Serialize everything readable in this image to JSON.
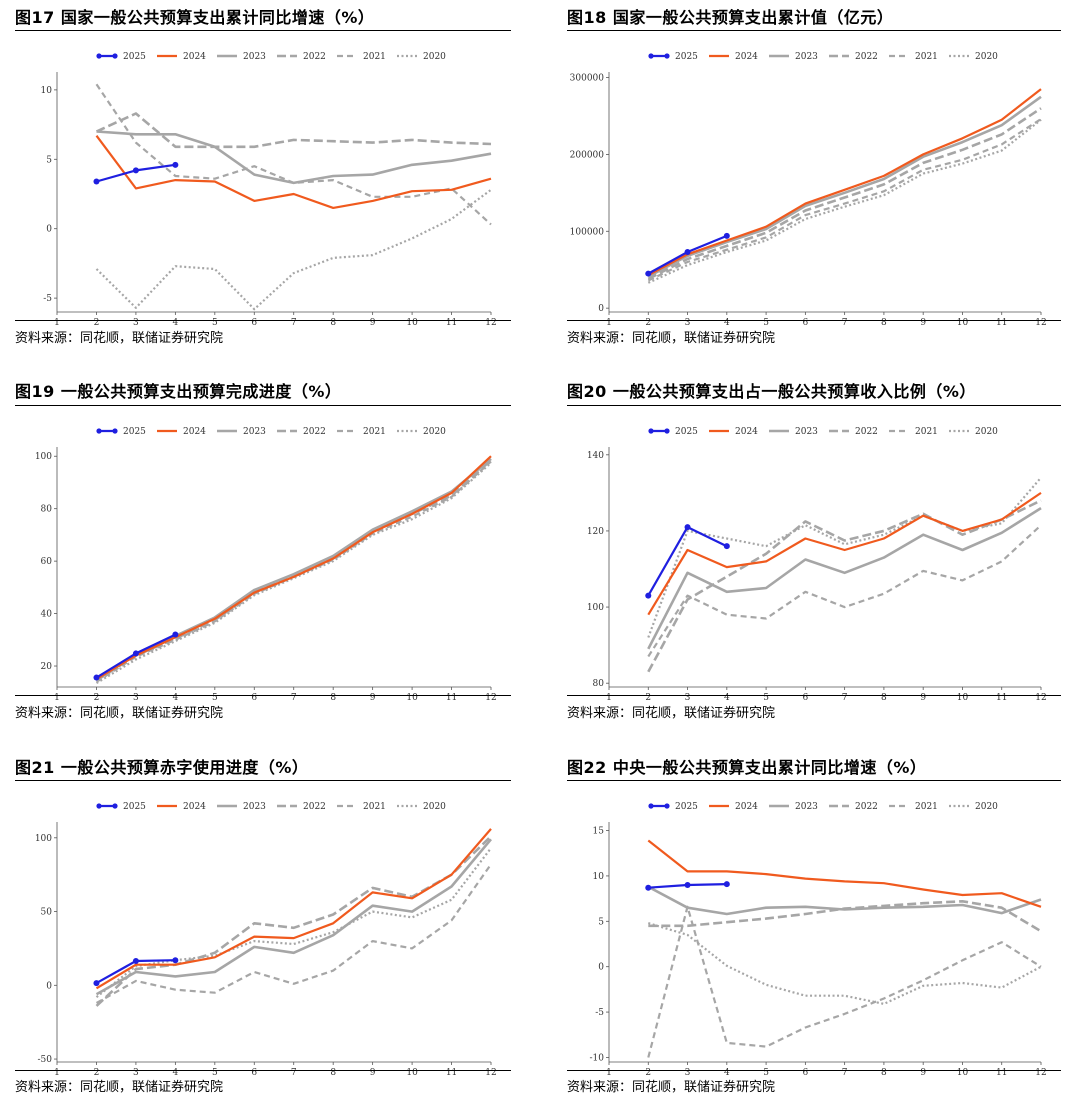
{
  "source_text": "资料来源：同花顺，联储证券研究院",
  "legend_labels": [
    "2025",
    "2024",
    "2023",
    "2022",
    "2021",
    "2020"
  ],
  "colors": {
    "c2025": "#1f1fe0",
    "c2024": "#f05a1e",
    "c2023": "#a6a6a6",
    "c2022": "#a6a6a6",
    "c2021": "#a6a6a6",
    "c2020": "#a6a6a6"
  },
  "chart_data": [
    {
      "id": "fig17",
      "type": "line",
      "title": "图17 国家一般公共预算支出累计同比增速（%）",
      "xlabel": "",
      "ylabel": "",
      "x": [
        1,
        2,
        3,
        4,
        5,
        6,
        7,
        8,
        9,
        10,
        11,
        12
      ],
      "xlim": [
        1,
        12
      ],
      "ylim": [
        -6,
        11
      ],
      "yticks": [
        -5,
        0,
        5,
        10
      ],
      "series": [
        {
          "name": "2025",
          "x": [
            2,
            3,
            4
          ],
          "values": [
            3.4,
            4.2,
            4.6
          ]
        },
        {
          "name": "2024",
          "x": [
            2,
            3,
            4,
            5,
            6,
            7,
            8,
            9,
            10,
            11,
            12
          ],
          "values": [
            6.7,
            2.9,
            3.5,
            3.4,
            2.0,
            2.5,
            1.5,
            2.0,
            2.7,
            2.8,
            3.6
          ]
        },
        {
          "name": "2023",
          "x": [
            2,
            3,
            4,
            5,
            6,
            7,
            8,
            9,
            10,
            11,
            12
          ],
          "values": [
            7.0,
            6.8,
            6.8,
            5.9,
            3.9,
            3.3,
            3.8,
            3.9,
            4.6,
            4.9,
            5.4
          ]
        },
        {
          "name": "2022",
          "x": [
            2,
            3,
            4,
            5,
            6,
            7,
            8,
            9,
            10,
            11,
            12
          ],
          "values": [
            7.0,
            8.3,
            5.9,
            5.9,
            5.9,
            6.4,
            6.3,
            6.2,
            6.4,
            6.2,
            6.1
          ]
        },
        {
          "name": "2021",
          "x": [
            2,
            3,
            4,
            5,
            6,
            7,
            8,
            9,
            10,
            11,
            12
          ],
          "values": [
            10.4,
            6.2,
            3.8,
            3.6,
            4.5,
            3.3,
            3.5,
            2.3,
            2.3,
            2.9,
            0.3
          ]
        },
        {
          "name": "2020",
          "x": [
            2,
            3,
            4,
            5,
            6,
            7,
            8,
            9,
            10,
            11,
            12
          ],
          "values": [
            -2.9,
            -5.7,
            -2.7,
            -2.9,
            -5.8,
            -3.2,
            -2.1,
            -1.9,
            -0.7,
            0.7,
            2.8
          ]
        }
      ]
    },
    {
      "id": "fig18",
      "type": "line",
      "title": "图18 国家一般公共预算支出累计值（亿元）",
      "xlabel": "",
      "ylabel": "",
      "x": [
        1,
        2,
        3,
        4,
        5,
        6,
        7,
        8,
        9,
        10,
        11,
        12
      ],
      "xlim": [
        1,
        12
      ],
      "ylim": [
        -5000,
        302000
      ],
      "yticks": [
        0,
        100000,
        200000,
        300000
      ],
      "series": [
        {
          "name": "2025",
          "x": [
            2,
            3,
            4
          ],
          "values": [
            45000,
            73000,
            94000
          ]
        },
        {
          "name": "2024",
          "x": [
            2,
            3,
            4,
            5,
            6,
            7,
            8,
            9,
            10,
            11,
            12
          ],
          "values": [
            43000,
            70000,
            88000,
            106000,
            136000,
            154000,
            172000,
            200000,
            221000,
            245000,
            285000
          ]
        },
        {
          "name": "2023",
          "x": [
            2,
            3,
            4,
            5,
            6,
            7,
            8,
            9,
            10,
            11,
            12
          ],
          "values": [
            41000,
            68000,
            86000,
            103000,
            133000,
            150000,
            168000,
            197000,
            216000,
            238000,
            275000
          ]
        },
        {
          "name": "2022",
          "x": [
            2,
            3,
            4,
            5,
            6,
            7,
            8,
            9,
            10,
            11,
            12
          ],
          "values": [
            38000,
            64000,
            81000,
            98000,
            127000,
            144000,
            161000,
            189000,
            206000,
            226000,
            260000
          ]
        },
        {
          "name": "2021",
          "x": [
            2,
            3,
            4,
            5,
            6,
            7,
            8,
            9,
            10,
            11,
            12
          ],
          "values": [
            36000,
            60000,
            76000,
            92000,
            121000,
            136000,
            152000,
            180000,
            193000,
            213000,
            246000
          ]
        },
        {
          "name": "2020",
          "x": [
            2,
            3,
            4,
            5,
            6,
            7,
            8,
            9,
            10,
            11,
            12
          ],
          "values": [
            33000,
            56000,
            73000,
            88000,
            116000,
            132000,
            147000,
            175000,
            188000,
            205000,
            245000
          ]
        }
      ]
    },
    {
      "id": "fig19",
      "type": "line",
      "title": "图19 一般公共预算支出预算完成进度（%）",
      "xlabel": "",
      "ylabel": "",
      "x": [
        1,
        2,
        3,
        4,
        5,
        6,
        7,
        8,
        9,
        10,
        11,
        12
      ],
      "xlim": [
        1,
        12
      ],
      "ylim": [
        12,
        102
      ],
      "yticks": [
        20,
        40,
        60,
        80,
        100
      ],
      "series": [
        {
          "name": "2025",
          "x": [
            2,
            3,
            4
          ],
          "values": [
            15.6,
            24.8,
            32.0
          ]
        },
        {
          "name": "2024",
          "x": [
            2,
            3,
            4,
            5,
            6,
            7,
            8,
            9,
            10,
            11,
            12
          ],
          "values": [
            15.0,
            24.0,
            31.0,
            38.0,
            48.0,
            54.0,
            61.0,
            71.0,
            78.0,
            86.0,
            100.0
          ]
        },
        {
          "name": "2023",
          "x": [
            2,
            3,
            4,
            5,
            6,
            7,
            8,
            9,
            10,
            11,
            12
          ],
          "values": [
            14.8,
            24.5,
            31.5,
            38.5,
            49.0,
            55.0,
            62.0,
            72.0,
            79.0,
            86.5,
            99.0
          ]
        },
        {
          "name": "2022",
          "x": [
            2,
            3,
            4,
            5,
            6,
            7,
            8,
            9,
            10,
            11,
            12
          ],
          "values": [
            14.5,
            24.0,
            30.5,
            37.5,
            48.0,
            54.5,
            61.0,
            71.5,
            78.0,
            85.0,
            98.5
          ]
        },
        {
          "name": "2021",
          "x": [
            2,
            3,
            4,
            5,
            6,
            7,
            8,
            9,
            10,
            11,
            12
          ],
          "values": [
            14.0,
            23.5,
            30.0,
            37.0,
            47.5,
            54.0,
            60.5,
            70.5,
            77.0,
            84.5,
            98.0
          ]
        },
        {
          "name": "2020",
          "x": [
            2,
            3,
            4,
            5,
            6,
            7,
            8,
            9,
            10,
            11,
            12
          ],
          "values": [
            13.5,
            22.5,
            29.5,
            36.5,
            47.0,
            53.5,
            60.0,
            70.0,
            76.0,
            84.0,
            97.5
          ]
        }
      ]
    },
    {
      "id": "fig20",
      "type": "line",
      "title": "图20 一般公共预算支出占一般公共预算收入比例（%）",
      "xlabel": "",
      "ylabel": "",
      "x": [
        1,
        2,
        3,
        4,
        5,
        6,
        7,
        8,
        9,
        10,
        11,
        12
      ],
      "xlim": [
        1,
        12
      ],
      "ylim": [
        79,
        141
      ],
      "yticks": [
        80,
        100,
        120,
        140
      ],
      "series": [
        {
          "name": "2025",
          "x": [
            2,
            3,
            4
          ],
          "values": [
            103,
            121,
            116
          ]
        },
        {
          "name": "2024",
          "x": [
            2,
            3,
            4,
            5,
            6,
            7,
            8,
            9,
            10,
            11,
            12
          ],
          "values": [
            98,
            115,
            110.5,
            112,
            118,
            115,
            118,
            124,
            120,
            123,
            130
          ]
        },
        {
          "name": "2023",
          "x": [
            2,
            3,
            4,
            5,
            6,
            7,
            8,
            9,
            10,
            11,
            12
          ],
          "values": [
            89,
            109,
            104,
            105,
            112.5,
            109,
            113,
            119,
            115,
            119.5,
            126
          ]
        },
        {
          "name": "2022",
          "x": [
            2,
            3,
            4,
            5,
            6,
            7,
            8,
            9,
            10,
            11,
            12
          ],
          "values": [
            83,
            102,
            108,
            114,
            122.5,
            117.5,
            120,
            124.5,
            119,
            123,
            128
          ]
        },
        {
          "name": "2021",
          "x": [
            2,
            3,
            4,
            5,
            6,
            7,
            8,
            9,
            10,
            11,
            12
          ],
          "values": [
            87,
            103,
            98,
            97,
            104,
            100,
            103.5,
            109.5,
            107,
            112,
            121.5
          ]
        },
        {
          "name": "2020",
          "x": [
            2,
            3,
            4,
            5,
            6,
            7,
            8,
            9,
            10,
            11,
            12
          ],
          "values": [
            92,
            120,
            118,
            116,
            121.5,
            116.5,
            119,
            124,
            120,
            122,
            134
          ]
        }
      ]
    },
    {
      "id": "fig21",
      "type": "line",
      "title": "图21 一般公共预算赤字使用进度（%）",
      "xlabel": "",
      "ylabel": "",
      "x": [
        1,
        2,
        3,
        4,
        5,
        6,
        7,
        8,
        9,
        10,
        11,
        12
      ],
      "xlim": [
        1,
        12
      ],
      "ylim": [
        -52,
        108
      ],
      "yticks": [
        -50,
        0,
        50,
        100
      ],
      "series": [
        {
          "name": "2025",
          "x": [
            2,
            3,
            4
          ],
          "values": [
            1.5,
            16.5,
            17.0
          ]
        },
        {
          "name": "2024",
          "x": [
            2,
            3,
            4,
            5,
            6,
            7,
            8,
            9,
            10,
            11,
            12
          ],
          "values": [
            -2,
            14,
            14,
            19,
            33,
            32,
            42,
            63,
            59,
            75,
            106
          ]
        },
        {
          "name": "2023",
          "x": [
            2,
            3,
            4,
            5,
            6,
            7,
            8,
            9,
            10,
            11,
            12
          ],
          "values": [
            -6,
            9,
            6,
            9,
            26,
            22,
            34,
            54,
            50,
            67,
            99
          ]
        },
        {
          "name": "2022",
          "x": [
            2,
            3,
            4,
            5,
            6,
            7,
            8,
            9,
            10,
            11,
            12
          ],
          "values": [
            -14,
            11,
            14,
            22,
            42,
            39,
            48,
            66,
            60,
            75,
            101
          ]
        },
        {
          "name": "2021",
          "x": [
            2,
            3,
            4,
            5,
            6,
            7,
            8,
            9,
            10,
            11,
            12
          ],
          "values": [
            -12,
            3,
            -3,
            -5,
            9,
            1,
            10,
            30,
            25,
            44,
            82
          ]
        },
        {
          "name": "2020",
          "x": [
            2,
            3,
            4,
            5,
            6,
            7,
            8,
            9,
            10,
            11,
            12
          ],
          "values": [
            -8,
            13,
            17,
            20,
            30,
            28,
            36,
            50,
            46,
            58,
            93
          ]
        }
      ]
    },
    {
      "id": "fig22",
      "type": "line",
      "title": "图22 中央一般公共预算支出累计同比增速（%）",
      "xlabel": "",
      "ylabel": "",
      "x": [
        1,
        2,
        3,
        4,
        5,
        6,
        7,
        8,
        9,
        10,
        11,
        12
      ],
      "xlim": [
        1,
        12
      ],
      "ylim": [
        -10.5,
        15.5
      ],
      "yticks": [
        -10,
        -5,
        0,
        5,
        10,
        15
      ],
      "series": [
        {
          "name": "2025",
          "x": [
            2,
            3,
            4
          ],
          "values": [
            8.7,
            9.0,
            9.1
          ]
        },
        {
          "name": "2024",
          "x": [
            2,
            3,
            4,
            5,
            6,
            7,
            8,
            9,
            10,
            11,
            12
          ],
          "values": [
            13.9,
            10.5,
            10.5,
            10.2,
            9.7,
            9.4,
            9.2,
            8.5,
            7.9,
            8.1,
            6.6
          ]
        },
        {
          "name": "2023",
          "x": [
            2,
            3,
            4,
            5,
            6,
            7,
            8,
            9,
            10,
            11,
            12
          ],
          "values": [
            8.8,
            6.5,
            5.8,
            6.5,
            6.6,
            6.3,
            6.5,
            6.6,
            6.8,
            5.9,
            7.4
          ]
        },
        {
          "name": "2022",
          "x": [
            2,
            3,
            4,
            5,
            6,
            7,
            8,
            9,
            10,
            11,
            12
          ],
          "values": [
            4.5,
            4.5,
            4.9,
            5.3,
            5.8,
            6.4,
            6.7,
            7.0,
            7.2,
            6.5,
            3.9
          ]
        },
        {
          "name": "2021",
          "x": [
            2,
            3,
            4,
            5,
            6,
            7,
            8,
            9,
            10,
            11,
            12
          ],
          "values": [
            -10.0,
            6.6,
            -8.4,
            -8.8,
            -6.7,
            -5.2,
            -3.5,
            -1.5,
            0.7,
            2.7,
            0.0
          ]
        },
        {
          "name": "2020",
          "x": [
            2,
            3,
            4,
            5,
            6,
            7,
            8,
            9,
            10,
            11,
            12
          ],
          "values": [
            4.8,
            3.5,
            0.1,
            -2.0,
            -3.2,
            -3.2,
            -4.1,
            -2.1,
            -1.8,
            -2.3,
            0.0
          ]
        }
      ]
    }
  ]
}
